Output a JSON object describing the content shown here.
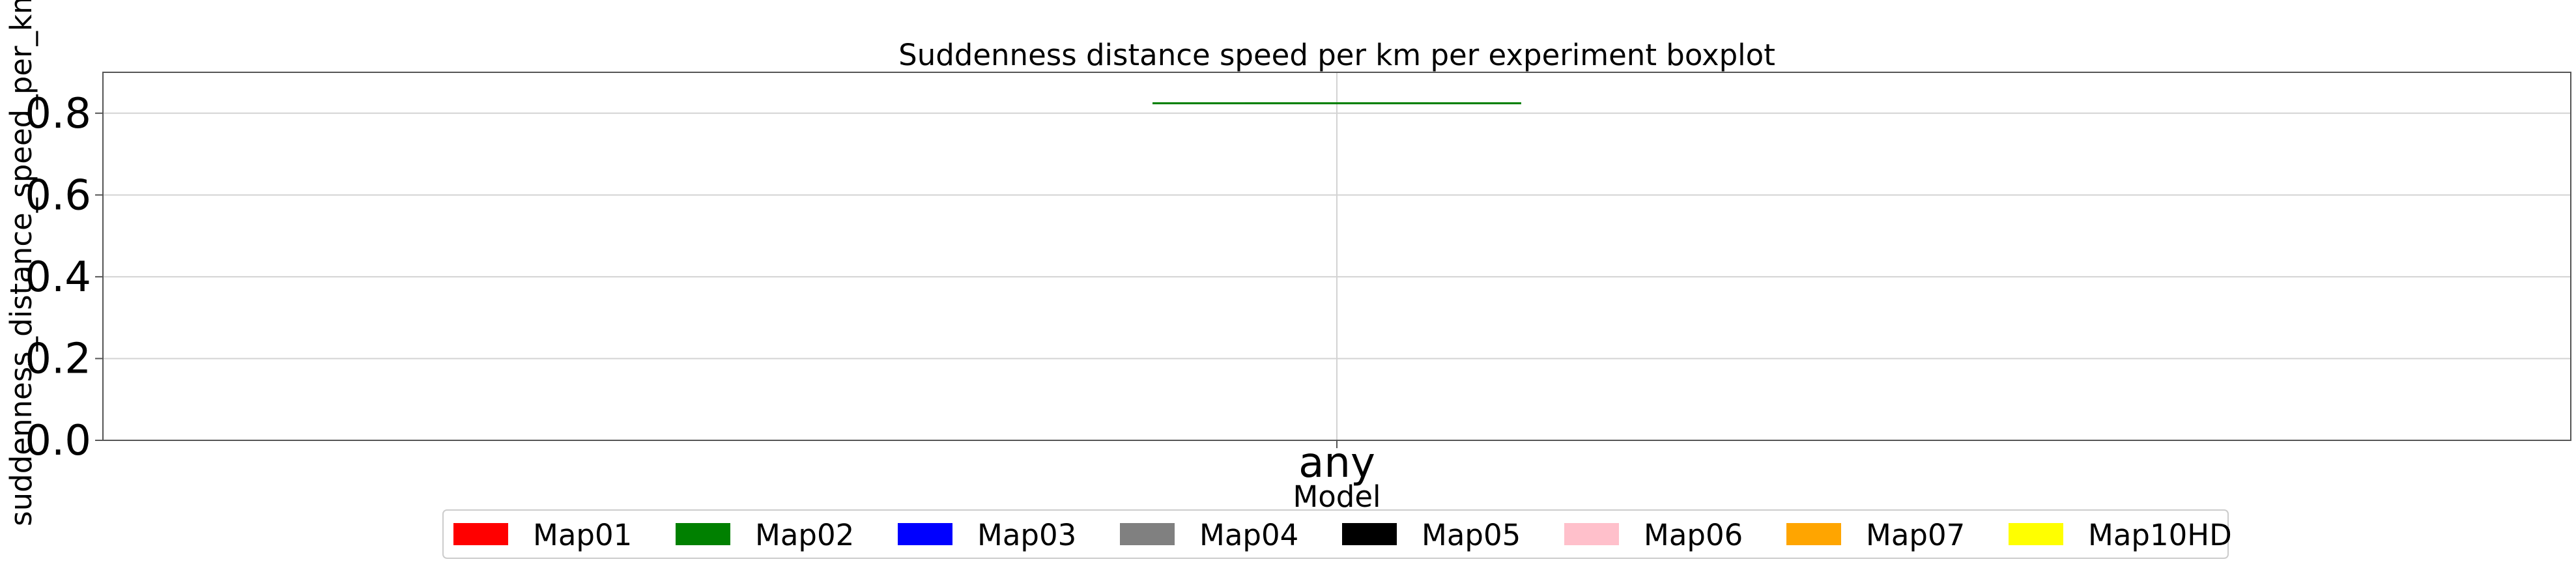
{
  "chart_data": {
    "type": "boxplot",
    "title": "Suddenness distance speed per km per experiment boxplot",
    "xlabel": "Model",
    "ylabel": "suddenness_distance_speed_per_km",
    "categories": [
      "any"
    ],
    "ylim": [
      0,
      0.9
    ],
    "yticks": [
      0.0,
      0.2,
      0.4,
      0.6,
      0.8
    ],
    "ytick_labels": [
      "0.0",
      "0.2",
      "0.4",
      "0.6",
      "0.8"
    ],
    "grid": true,
    "legend_position": "bottom-center",
    "series": [
      {
        "name": "Map01",
        "color": "#ff0000",
        "values": []
      },
      {
        "name": "Map02",
        "color": "#008000",
        "values": [
          0.825
        ]
      },
      {
        "name": "Map03",
        "color": "#0000ff",
        "values": []
      },
      {
        "name": "Map04",
        "color": "#808080",
        "values": []
      },
      {
        "name": "Map05",
        "color": "#000000",
        "values": []
      },
      {
        "name": "Map06",
        "color": "#ffc0cb",
        "values": []
      },
      {
        "name": "Map07",
        "color": "#ffa500",
        "values": []
      },
      {
        "name": "Map10HD",
        "color": "#ffff00",
        "values": []
      }
    ],
    "boxes": [
      {
        "category": "any",
        "series": "Map02",
        "min": 0.825,
        "q1": 0.825,
        "median": 0.825,
        "q3": 0.825,
        "max": 0.825
      }
    ]
  }
}
